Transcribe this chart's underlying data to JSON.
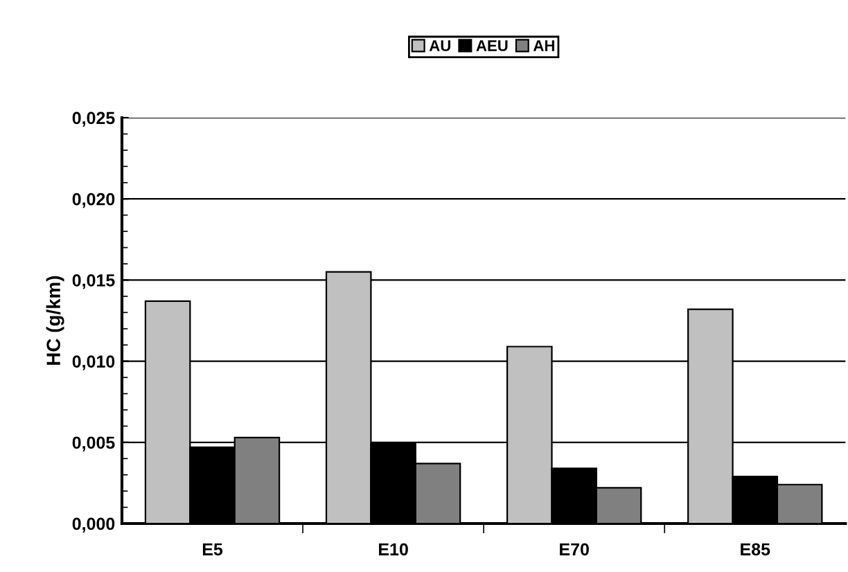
{
  "chart_data": {
    "type": "bar",
    "ylabel": "HC (g/km)",
    "categories": [
      "E5",
      "E10",
      "E70",
      "E85"
    ],
    "series": [
      {
        "name": "AU",
        "color": "#c0c0c0",
        "values": [
          0.0137,
          0.0155,
          0.0109,
          0.0132
        ]
      },
      {
        "name": "AEU",
        "color": "#000000",
        "values": [
          0.0047,
          0.0049,
          0.0034,
          0.0029
        ]
      },
      {
        "name": "AH",
        "color": "#808080",
        "values": [
          0.0053,
          0.0037,
          0.0022,
          0.0024
        ]
      }
    ],
    "ylim": [
      0,
      0.025
    ],
    "yticks": [
      {
        "value": 0,
        "label": "0,000"
      },
      {
        "value": 0.005,
        "label": "0,005"
      },
      {
        "value": 0.01,
        "label": "0,010"
      },
      {
        "value": 0.015,
        "label": "0,015"
      },
      {
        "value": 0.02,
        "label": "0,020"
      },
      {
        "value": 0.025,
        "label": "0,025"
      }
    ],
    "grid": "y",
    "legend": "top"
  }
}
